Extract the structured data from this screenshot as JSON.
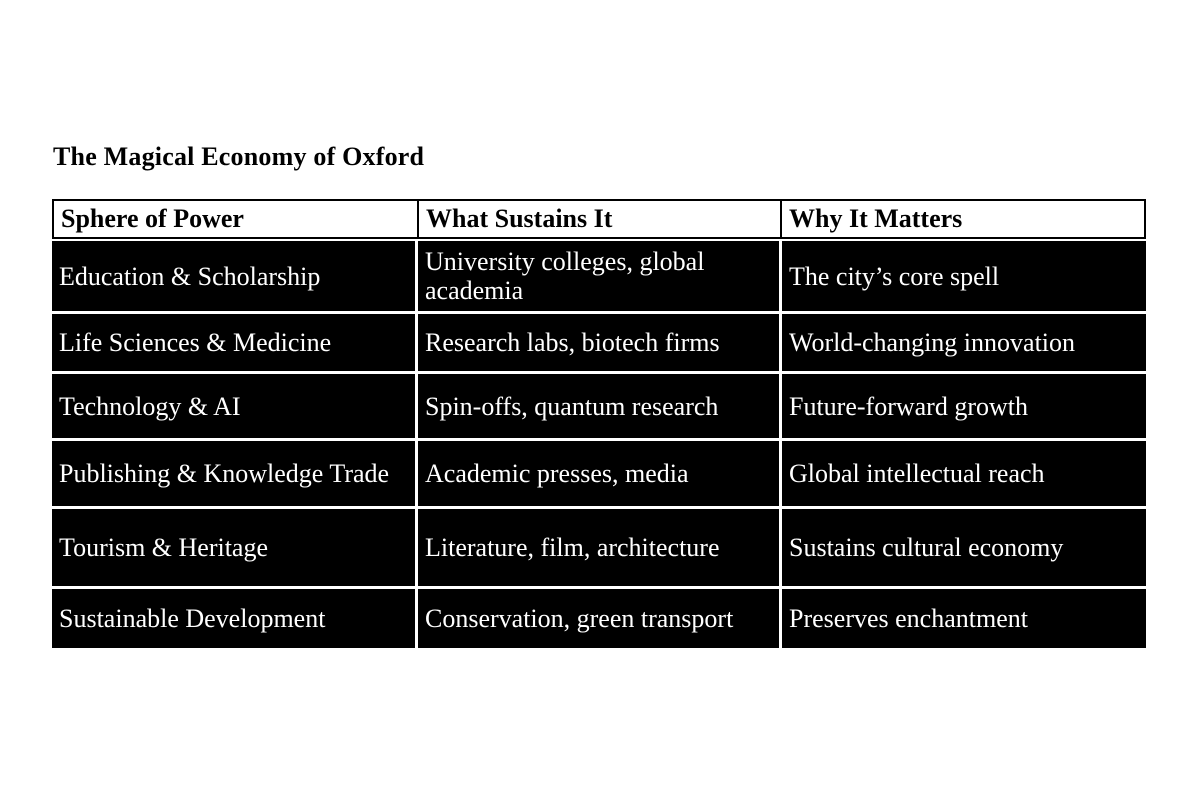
{
  "document": {
    "title": "The Magical Economy of Oxford",
    "colors": {
      "page_background": "#ffffff",
      "header_background": "#ffffff",
      "header_text": "#000000",
      "cell_background": "#000000",
      "cell_text": "#ffffff",
      "border": "#000000"
    },
    "table": {
      "headers": [
        "Sphere of Power",
        "What Sustains It",
        "Why It Matters"
      ],
      "rows": [
        [
          "Education & Scholarship",
          "University colleges, global\nacademia",
          "The city’s core spell"
        ],
        [
          "Life Sciences & Medicine",
          "Research labs, biotech firms",
          "World-changing innovation"
        ],
        [
          "Technology & AI",
          "Spin-offs, quantum research",
          "Future-forward growth"
        ],
        [
          "Publishing & Knowledge Trade",
          "Academic presses, media",
          "Global intellectual reach"
        ],
        [
          "Tourism & Heritage",
          "Literature, film, architecture",
          "Sustains cultural economy"
        ],
        [
          "Sustainable Development",
          "Conservation, green transport",
          "Preserves enchantment"
        ]
      ]
    }
  }
}
